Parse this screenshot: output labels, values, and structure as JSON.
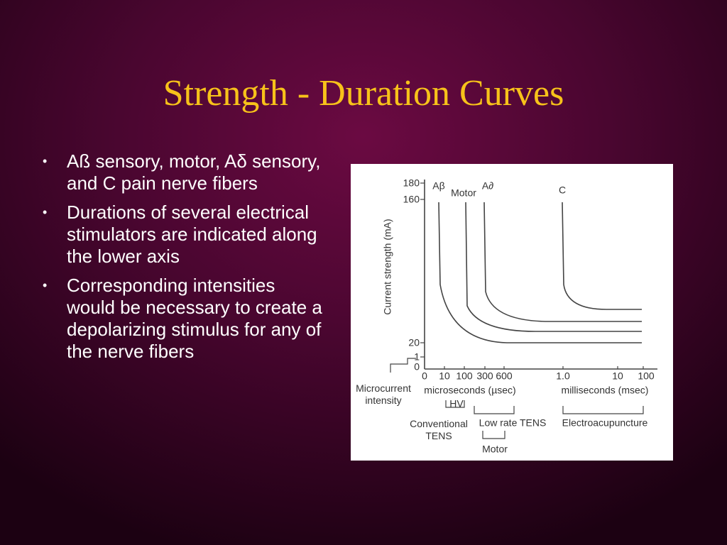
{
  "title": "Strength - Duration Curves",
  "bullets": [
    "Aß sensory, motor, Aδ sensory, and C pain nerve fibers",
    " Durations of several electrical stimulators are indicated along the lower axis",
    "Corresponding intensities would be necessary to create a depolarizing stimulus for any of the nerve fibers"
  ],
  "figure": {
    "y_axis_label": "Current strength (mA)",
    "y_tick_labels": [
      "180",
      "160",
      "20",
      "1",
      "0"
    ],
    "x_tick_labels": [
      "0",
      "10",
      "100",
      "300",
      "600",
      "1.0",
      "10",
      "100"
    ],
    "x_unit_labels": [
      "microseconds (µsec)",
      "milliseconds (msec)"
    ],
    "curve_labels": [
      "Aβ",
      "Motor",
      "A∂",
      "C"
    ],
    "stimulator_labels": [
      "Microcurrent intensity",
      "HV",
      "Conventional TENS",
      "Low rate TENS",
      "Motor",
      "Electroacupuncture"
    ]
  }
}
